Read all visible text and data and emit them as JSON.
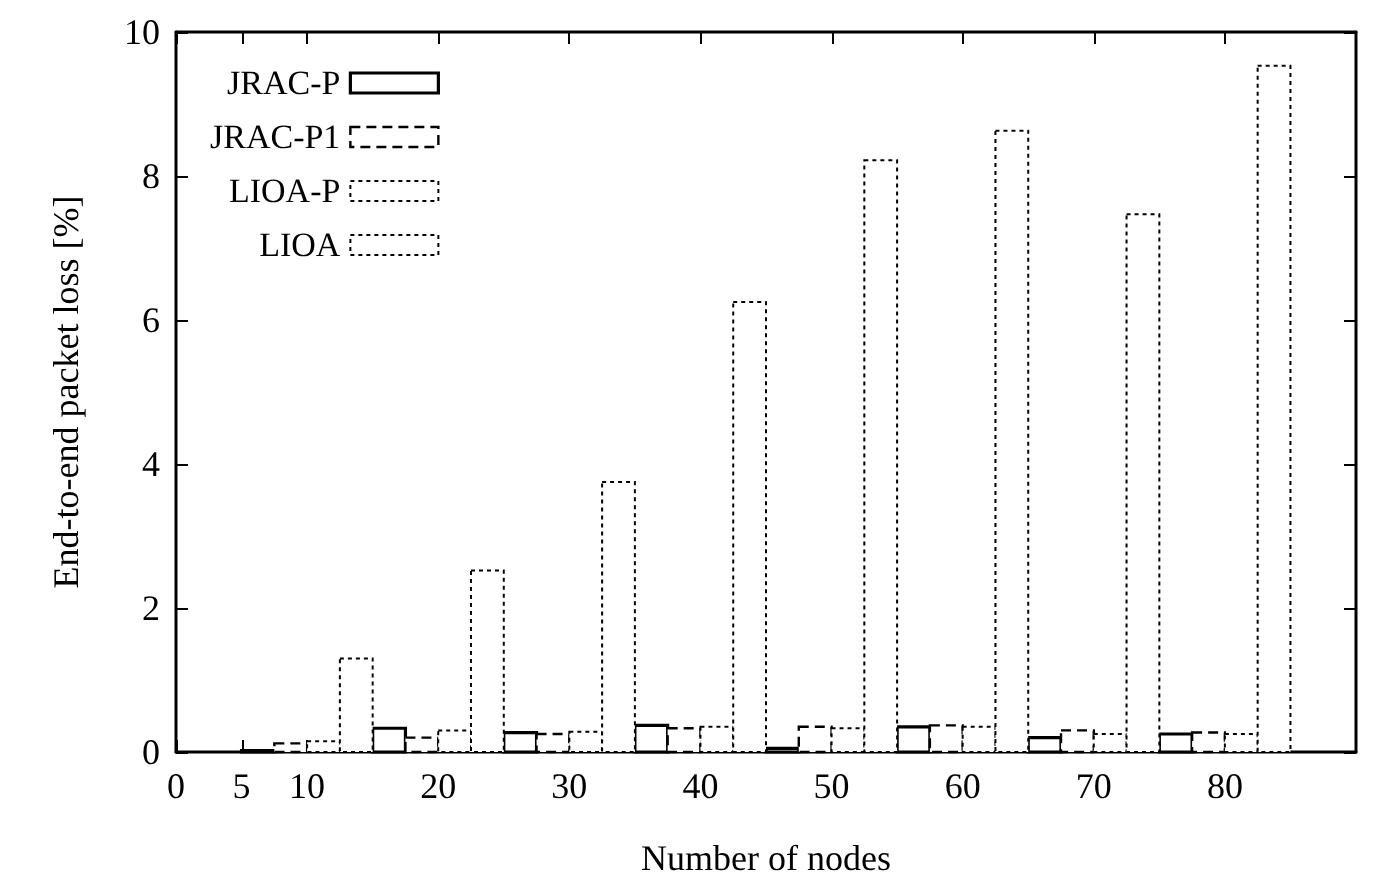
{
  "chart_data": {
    "type": "bar",
    "xlabel": "Number of nodes",
    "ylabel": "End-to-end packet loss [%]",
    "x": [
      10,
      20,
      30,
      40,
      50,
      60,
      70,
      80
    ],
    "series": [
      {
        "name": "JRAC-P",
        "color": "#000000",
        "line_style": "solid",
        "values": [
          0.02,
          0.33,
          0.27,
          0.37,
          0.05,
          0.35,
          0.2,
          0.25
        ]
      },
      {
        "name": "JRAC-P1",
        "color": "#000000",
        "line_style": "dashed",
        "values": [
          0.12,
          0.2,
          0.25,
          0.33,
          0.35,
          0.37,
          0.3,
          0.27
        ]
      },
      {
        "name": "LIOA-P",
        "color": "#000000",
        "line_style": "dotted",
        "values": [
          0.15,
          0.3,
          0.28,
          0.35,
          0.33,
          0.35,
          0.25,
          0.25
        ]
      },
      {
        "name": "LIOA",
        "color": "#000000",
        "line_style": "dotted",
        "values": [
          1.3,
          2.52,
          3.75,
          6.25,
          8.22,
          8.63,
          7.47,
          9.53
        ]
      }
    ],
    "xlim": [
      0,
      90
    ],
    "xticks": [
      0,
      5,
      10,
      20,
      30,
      40,
      50,
      60,
      70,
      80
    ],
    "ylim": [
      0,
      10
    ],
    "yticks": [
      0,
      2,
      4,
      6,
      8,
      10
    ],
    "grid": false,
    "legend": "top left"
  }
}
